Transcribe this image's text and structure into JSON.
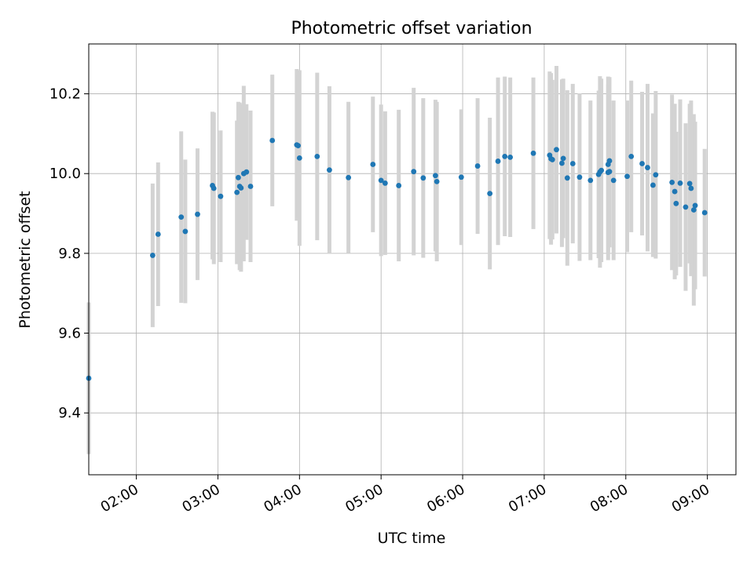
{
  "chart_data": {
    "type": "scatter",
    "title": "Photometric offset variation",
    "xlabel": "UTC time",
    "ylabel": "Photometric offset",
    "xlim": [
      "01:25",
      "09:21"
    ],
    "ylim": [
      9.245,
      10.325
    ],
    "x_ticks": [
      "02:00",
      "03:00",
      "04:00",
      "05:00",
      "06:00",
      "07:00",
      "08:00",
      "09:00"
    ],
    "y_ticks": [
      9.4,
      9.6,
      9.8,
      10.0,
      10.2
    ],
    "y_tick_labels": [
      "9.4",
      "9.6",
      "9.8",
      "10.0",
      "10.2"
    ],
    "grid": true,
    "colors": {
      "points": "#1f77b4",
      "errorbars": "#d3d3d3"
    },
    "series": [
      {
        "x": [
          "01:25",
          "02:12",
          "02:16",
          "02:33",
          "02:36",
          "02:45",
          "02:56",
          "02:57",
          "03:02",
          "03:14",
          "03:15",
          "03:16",
          "03:17",
          "03:19",
          "03:21",
          "03:24",
          "03:40",
          "03:58",
          "03:59",
          "04:00",
          "04:13",
          "04:22",
          "04:36",
          "04:54",
          "05:00",
          "05:03",
          "05:13",
          "05:24",
          "05:31",
          "05:40",
          "05:41",
          "05:59",
          "06:11",
          "06:20",
          "06:26",
          "06:31",
          "06:35",
          "06:52",
          "07:04",
          "07:05",
          "07:06",
          "07:09",
          "07:13",
          "07:14",
          "07:17",
          "07:21",
          "07:26",
          "07:34",
          "07:40",
          "07:41",
          "07:42",
          "07:47",
          "07:47",
          "07:48",
          "07:48",
          "07:51",
          "08:01",
          "08:04",
          "08:12",
          "08:16",
          "08:20",
          "08:22",
          "08:34",
          "08:36",
          "08:37",
          "08:40",
          "08:44",
          "08:47",
          "08:48",
          "08:50",
          "08:51",
          "08:58"
        ],
        "y": [
          9.487,
          9.795,
          9.848,
          9.891,
          9.855,
          9.898,
          9.97,
          9.963,
          9.943,
          9.953,
          9.99,
          9.968,
          9.964,
          10.0,
          10.004,
          9.968,
          10.083,
          10.072,
          10.07,
          10.039,
          10.043,
          10.009,
          9.99,
          10.023,
          9.983,
          9.976,
          9.97,
          10.005,
          9.989,
          9.995,
          9.98,
          9.991,
          10.019,
          9.95,
          10.031,
          10.043,
          10.041,
          10.051,
          10.046,
          10.037,
          10.035,
          10.06,
          10.026,
          10.038,
          9.989,
          10.025,
          9.991,
          9.983,
          9.998,
          10.004,
          10.008,
          10.003,
          10.023,
          10.032,
          10.005,
          9.983,
          9.993,
          10.043,
          10.025,
          10.015,
          9.971,
          9.997,
          9.978,
          9.955,
          9.925,
          9.976,
          9.916,
          9.975,
          9.963,
          9.909,
          9.92,
          9.902
        ],
        "yerr": [
          0.19,
          0.18,
          0.18,
          0.215,
          0.18,
          0.165,
          0.185,
          0.19,
          0.165,
          0.18,
          0.19,
          0.21,
          0.21,
          0.22,
          0.17,
          0.19,
          0.165,
          0.19,
          0.18,
          0.22,
          0.21,
          0.21,
          0.19,
          0.17,
          0.19,
          0.18,
          0.19,
          0.21,
          0.2,
          0.19,
          0.2,
          0.17,
          0.17,
          0.19,
          0.21,
          0.2,
          0.2,
          0.19,
          0.21,
          0.215,
          0.2,
          0.21,
          0.21,
          0.2,
          0.22,
          0.2,
          0.21,
          0.2,
          0.21,
          0.24,
          0.23,
          0.22,
          0.22,
          0.21,
          0.19,
          0.2,
          0.19,
          0.19,
          0.18,
          0.21,
          0.18,
          0.21,
          0.22,
          0.22,
          0.18,
          0.21,
          0.21,
          0.2,
          0.22,
          0.24,
          0.21,
          0.16
        ]
      }
    ]
  }
}
